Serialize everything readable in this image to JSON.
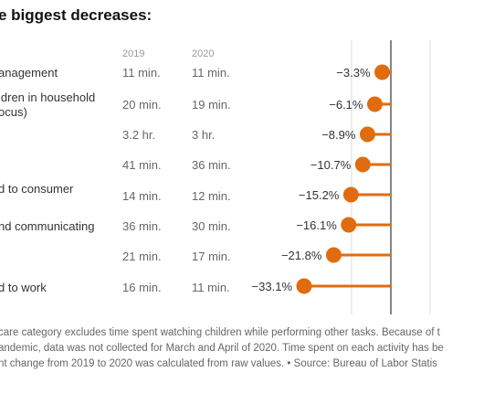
{
  "title": "e biggest decreases:",
  "year_headers": [
    "2019",
    "2020"
  ],
  "rows": [
    {
      "label": [
        "anagement"
      ],
      "v2019": "11 min.",
      "v2020": "11 min."
    },
    {
      "label": [
        "ldren in household",
        "ocus)"
      ],
      "v2019": "20 min.",
      "v2020": "19 min."
    },
    {
      "label": [
        ""
      ],
      "v2019": "3.2 hr.",
      "v2020": "3 hr."
    },
    {
      "label": [
        ""
      ],
      "v2019": "41 min.",
      "v2020": "36 min."
    },
    {
      "label": [
        "d to consumer"
      ],
      "v2019": "14 min.",
      "v2020": "12 min."
    },
    {
      "label": [
        "nd communicating"
      ],
      "v2019": "36 min.",
      "v2020": "30 min."
    },
    {
      "label": [
        ""
      ],
      "v2019": "21 min.",
      "v2020": "17 min."
    },
    {
      "label": [
        "d to work"
      ],
      "v2019": "16 min.",
      "v2020": "11 min."
    }
  ],
  "notes": [
    "care category excludes time spent watching children while performing other tasks. Because of t",
    "andemic, data was not collected for March and April of 2020. Time spent on each activity has be",
    "nt change from 2019 to 2020 was calculated from raw values.  •  Source: Bureau of Labor Statis"
  ],
  "chart_data": {
    "type": "lollipop",
    "values": [
      -3.3,
      -6.1,
      -8.9,
      -10.7,
      -15.2,
      -16.1,
      -21.8,
      -33.1
    ],
    "value_labels": [
      "−3.3%",
      "−6.1%",
      "−8.9%",
      "−10.7%",
      "−15.2%",
      "−16.1%",
      "−21.8%",
      "−33.1%"
    ],
    "xlim": [
      -33.1,
      3.3
    ],
    "color": "#e06c0f",
    "axis_color": "#333333",
    "grid_color": "#dddddd"
  }
}
